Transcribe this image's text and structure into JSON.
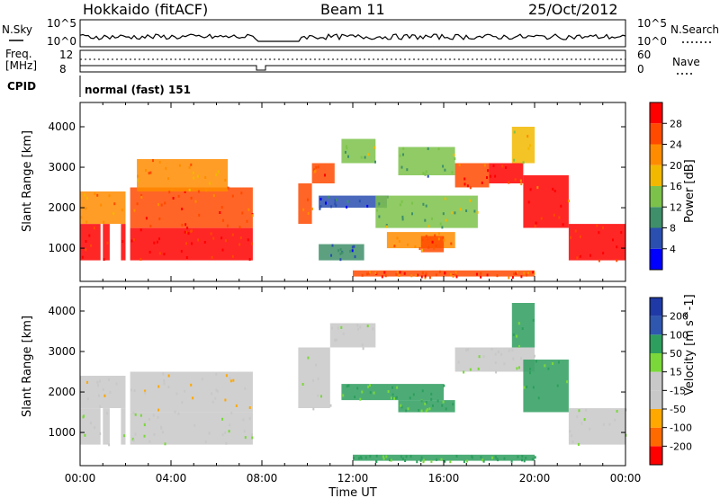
{
  "header": {
    "station": "Hokkaido (fitACF)",
    "beam": "Beam 11",
    "date": "25/Oct/2012"
  },
  "aux_panels": {
    "nsky_label": "N.Sky",
    "nsearch_label": "N.Search",
    "nsky_ticks": [
      "10^5",
      "10^0"
    ],
    "nsearch_ticks": [
      "10^5",
      "10^0"
    ],
    "freq_label_1": "Freq.",
    "freq_label_2": "[MHz]",
    "freq_ticks": [
      "12",
      "8"
    ],
    "nave_label": "Nave",
    "nave_ticks": [
      "60",
      "0"
    ],
    "cpid_label": "CPID",
    "cpid_text": "normal (fast) 151"
  },
  "colors": {
    "power_scale": [
      "#0000ff",
      "#2a4fb0",
      "#3f8f6a",
      "#7cc24a",
      "#f2b800",
      "#ff8c00",
      "#ff4a00",
      "#ff0000"
    ],
    "velocity_scale": [
      "#ff0000",
      "#ff6a00",
      "#ffa800",
      "#c8c8c8",
      "#c8c8c8",
      "#7ad83a",
      "#2e9e5e",
      "#2f57b0",
      "#1f3aa6"
    ],
    "gray": "#c8c8c8"
  },
  "chart_data": [
    {
      "type": "heatmap",
      "name": "power",
      "xlabel": "Time UT",
      "ylabel": "Slant Range [km]",
      "xlim": [
        0,
        24
      ],
      "ylim": [
        180,
        4600
      ],
      "x_ticks": [
        "00:00",
        "04:00",
        "08:00",
        "12:00",
        "16:00",
        "20:00",
        "00:00"
      ],
      "y_ticks": [
        1000,
        2000,
        3000,
        4000
      ],
      "colorbar_label": "Power [dB]",
      "colorbar_ticks": [
        "4",
        "8",
        "12",
        "16",
        "20",
        "24",
        "28"
      ],
      "colorbar_range": [
        0,
        32
      ],
      "regions": [
        {
          "t": [
            0.0,
            0.9
          ],
          "r": [
            700,
            1600
          ],
          "value": 28
        },
        {
          "t": [
            1.0,
            1.3
          ],
          "r": [
            700,
            1600
          ],
          "value": 28
        },
        {
          "t": [
            1.8,
            2.0
          ],
          "r": [
            700,
            1600
          ],
          "value": 28
        },
        {
          "t": [
            2.2,
            7.6
          ],
          "r": [
            700,
            1500
          ],
          "value": 29
        },
        {
          "t": [
            0.0,
            2.0
          ],
          "r": [
            1600,
            2400
          ],
          "value": 22
        },
        {
          "t": [
            2.2,
            7.6
          ],
          "r": [
            1500,
            2500
          ],
          "value": 26
        },
        {
          "t": [
            2.5,
            6.5
          ],
          "r": [
            2400,
            3200
          ],
          "value": 22
        },
        {
          "t": [
            9.6,
            10.2
          ],
          "r": [
            1600,
            2600
          ],
          "value": 27
        },
        {
          "t": [
            10.2,
            11.2
          ],
          "r": [
            2600,
            3100
          ],
          "value": 26
        },
        {
          "t": [
            10.5,
            12.5
          ],
          "r": [
            700,
            1100
          ],
          "value": 8
        },
        {
          "t": [
            10.5,
            13.5
          ],
          "r": [
            2000,
            2300
          ],
          "value": 6
        },
        {
          "t": [
            11.5,
            13.0
          ],
          "r": [
            3100,
            3700
          ],
          "value": 14
        },
        {
          "t": [
            12.0,
            16.0
          ],
          "r": [
            300,
            450
          ],
          "value": 27
        },
        {
          "t": [
            16.0,
            20.0
          ],
          "r": [
            300,
            450
          ],
          "value": 27
        },
        {
          "t": [
            13.5,
            16.5
          ],
          "r": [
            1000,
            1400
          ],
          "value": 22
        },
        {
          "t": [
            15.0,
            16.0
          ],
          "r": [
            900,
            1300
          ],
          "value": 24
        },
        {
          "t": [
            13.0,
            17.5
          ],
          "r": [
            1500,
            2300
          ],
          "value": 14
        },
        {
          "t": [
            14.0,
            16.5
          ],
          "r": [
            2800,
            3500
          ],
          "value": 12
        },
        {
          "t": [
            16.5,
            18.0
          ],
          "r": [
            2500,
            3100
          ],
          "value": 27
        },
        {
          "t": [
            18.0,
            19.5
          ],
          "r": [
            2600,
            3100
          ],
          "value": 28
        },
        {
          "t": [
            19.5,
            21.5
          ],
          "r": [
            1500,
            2800
          ],
          "value": 28
        },
        {
          "t": [
            21.5,
            24.0
          ],
          "r": [
            700,
            1600
          ],
          "value": 29
        },
        {
          "t": [
            19.0,
            20.0
          ],
          "r": [
            3100,
            4000
          ],
          "value": 16
        }
      ]
    },
    {
      "type": "heatmap",
      "name": "velocity",
      "xlabel": "Time UT",
      "ylabel": "Slant Range [km]",
      "xlim": [
        0,
        24
      ],
      "ylim": [
        180,
        4600
      ],
      "x_ticks": [
        "00:00",
        "04:00",
        "08:00",
        "12:00",
        "16:00",
        "20:00",
        "00:00"
      ],
      "y_ticks": [
        1000,
        2000,
        3000,
        4000
      ],
      "colorbar_label": "Velocity [m s^-1]",
      "colorbar_ticks": [
        "200",
        "100",
        "50",
        "15",
        "-15",
        "-50",
        "-100",
        "-200"
      ],
      "colorbar_range": [
        -250,
        250
      ],
      "regions": [
        {
          "t": [
            0.0,
            0.9
          ],
          "r": [
            700,
            1600
          ],
          "value": 0
        },
        {
          "t": [
            1.0,
            1.3
          ],
          "r": [
            700,
            1600
          ],
          "value": 0
        },
        {
          "t": [
            1.8,
            2.0
          ],
          "r": [
            700,
            1600
          ],
          "value": 0
        },
        {
          "t": [
            2.2,
            7.6
          ],
          "r": [
            700,
            1500
          ],
          "value": 0
        },
        {
          "t": [
            2.2,
            7.6
          ],
          "r": [
            1500,
            2500
          ],
          "value": -30
        },
        {
          "t": [
            0.0,
            2.0
          ],
          "r": [
            1600,
            2400
          ],
          "value": -30
        },
        {
          "t": [
            9.6,
            11.0
          ],
          "r": [
            1600,
            3100
          ],
          "value": 0
        },
        {
          "t": [
            11.0,
            13.0
          ],
          "r": [
            3100,
            3700
          ],
          "value": 0
        },
        {
          "t": [
            11.5,
            16.0
          ],
          "r": [
            1800,
            2200
          ],
          "value": 60
        },
        {
          "t": [
            14.0,
            16.5
          ],
          "r": [
            1500,
            1800
          ],
          "value": 60
        },
        {
          "t": [
            12.0,
            20.0
          ],
          "r": [
            300,
            450
          ],
          "value": 60
        },
        {
          "t": [
            16.5,
            20.0
          ],
          "r": [
            2500,
            3100
          ],
          "value": 0
        },
        {
          "t": [
            19.5,
            21.5
          ],
          "r": [
            1500,
            2800
          ],
          "value": 60
        },
        {
          "t": [
            19.0,
            20.0
          ],
          "r": [
            3100,
            4200
          ],
          "value": 60
        },
        {
          "t": [
            21.5,
            24.0
          ],
          "r": [
            700,
            1600
          ],
          "value": 0
        }
      ]
    }
  ]
}
